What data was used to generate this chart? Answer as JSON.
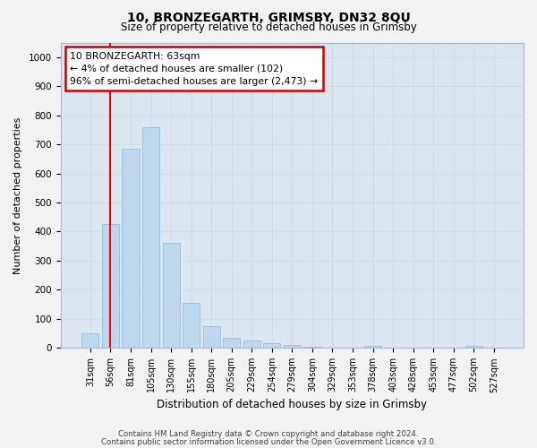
{
  "title1": "10, BRONZEGARTH, GRIMSBY, DN32 8QU",
  "title2": "Size of property relative to detached houses in Grimsby",
  "xlabel": "Distribution of detached houses by size in Grimsby",
  "ylabel": "Number of detached properties",
  "categories": [
    "31sqm",
    "56sqm",
    "81sqm",
    "105sqm",
    "130sqm",
    "155sqm",
    "180sqm",
    "205sqm",
    "229sqm",
    "254sqm",
    "279sqm",
    "304sqm",
    "329sqm",
    "353sqm",
    "378sqm",
    "403sqm",
    "428sqm",
    "453sqm",
    "477sqm",
    "502sqm",
    "527sqm"
  ],
  "values": [
    50,
    425,
    685,
    760,
    360,
    155,
    75,
    35,
    25,
    15,
    10,
    5,
    2,
    0,
    8,
    0,
    0,
    0,
    0,
    8,
    0
  ],
  "bar_color": "#bdd7ee",
  "bar_edge_color": "#9dc3e6",
  "grid_color": "#d0dce8",
  "bg_color": "#dce6f0",
  "red_line_x": 1.0,
  "annotation_text": "10 BRONZEGARTH: 63sqm\n← 4% of detached houses are smaller (102)\n96% of semi-detached houses are larger (2,473) →",
  "annotation_box_facecolor": "#ffffff",
  "annotation_border_color": "#cc0000",
  "footer1": "Contains HM Land Registry data © Crown copyright and database right 2024.",
  "footer2": "Contains public sector information licensed under the Open Government Licence v3.0.",
  "fig_facecolor": "#f2f2f2",
  "ylim": [
    0,
    1050
  ],
  "yticks": [
    0,
    100,
    200,
    300,
    400,
    500,
    600,
    700,
    800,
    900,
    1000
  ]
}
